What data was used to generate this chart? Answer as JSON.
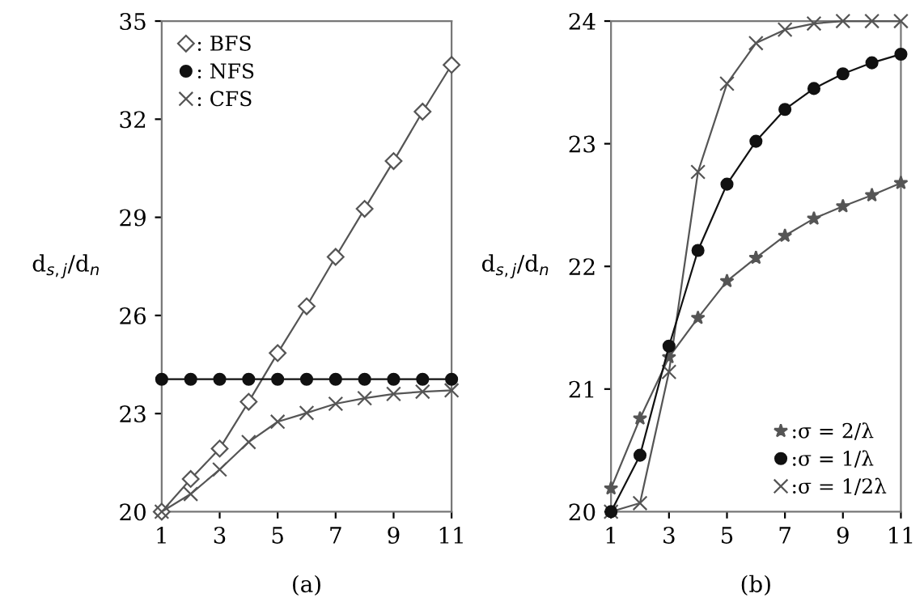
{
  "chart_data": [
    {
      "type": "line",
      "xlabel": "(a)",
      "ylabel": "d$_{s,j}$/d$_{n}$",
      "x": [
        1,
        2,
        3,
        4,
        5,
        6,
        7,
        8,
        9,
        10,
        11
      ],
      "xlim": [
        1,
        11
      ],
      "xticks": [
        1,
        3,
        5,
        7,
        9,
        11
      ],
      "ylim": [
        20,
        35
      ],
      "yticks": [
        20,
        23,
        26,
        29,
        32,
        35
      ],
      "grid": false,
      "legend": "top left",
      "series": [
        {
          "name": ": BFS",
          "color": "#555555",
          "marker": "diamond",
          "values": [
            20,
            21.0,
            21.93,
            23.36,
            24.85,
            26.28,
            27.79,
            29.26,
            30.72,
            32.23,
            33.66
          ]
        },
        {
          "name": ": NFS",
          "color": "#111111",
          "marker": "circle",
          "values": [
            24.05,
            24.05,
            24.05,
            24.05,
            24.05,
            24.05,
            24.05,
            24.05,
            24.05,
            24.05,
            24.05
          ]
        },
        {
          "name": ": CFS",
          "color": "#555555",
          "marker": "cross",
          "values": [
            20,
            20.54,
            21.29,
            22.13,
            22.75,
            23.02,
            23.3,
            23.47,
            23.6,
            23.67,
            23.71
          ]
        }
      ]
    },
    {
      "type": "line",
      "xlabel": "(b)",
      "ylabel": "d$_{s,j}$/d$_{n}$",
      "x": [
        1,
        2,
        3,
        4,
        5,
        6,
        7,
        8,
        9,
        10,
        11
      ],
      "xlim": [
        1,
        11
      ],
      "xticks": [
        1,
        3,
        5,
        7,
        9,
        11
      ],
      "ylim": [
        20,
        24
      ],
      "yticks": [
        20,
        21,
        22,
        23,
        24
      ],
      "grid": false,
      "legend": "bottom right",
      "series": [
        {
          "name": ":σ = 2/λ",
          "color": "#555555",
          "marker": "star",
          "values": [
            20.19,
            20.76,
            21.26,
            21.58,
            21.88,
            22.07,
            22.25,
            22.39,
            22.49,
            22.58,
            22.68
          ]
        },
        {
          "name": ":σ = 1/λ",
          "color": "#111111",
          "marker": "circle",
          "values": [
            20,
            20.46,
            21.35,
            22.13,
            22.67,
            23.02,
            23.28,
            23.45,
            23.57,
            23.66,
            23.73
          ]
        },
        {
          "name": ":σ = 1/2λ",
          "color": "#555555",
          "marker": "cross",
          "values": [
            20,
            20.07,
            21.14,
            22.77,
            23.49,
            23.82,
            23.93,
            23.98,
            24,
            24,
            24
          ]
        }
      ]
    }
  ]
}
